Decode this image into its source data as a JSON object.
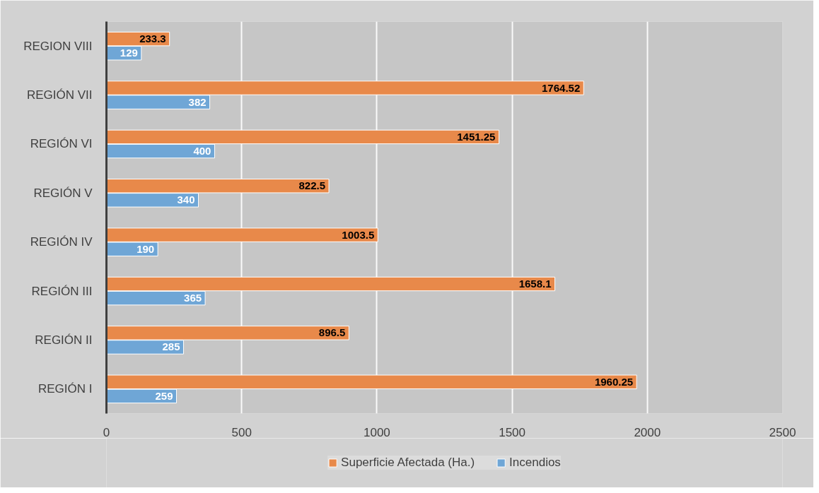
{
  "chart_data": {
    "type": "bar",
    "orientation": "horizontal",
    "categories": [
      "REGION VIII",
      "REGIÓN VII",
      "REGIÓN VI",
      "REGIÓN V",
      "REGIÓN IV",
      "REGIÓN III",
      "REGIÓN II",
      "REGIÓN I"
    ],
    "series": [
      {
        "name": "Superficie Afectada (Ha.)",
        "color": "#e8894a",
        "values": [
          233.3,
          1764.52,
          1451.25,
          822.5,
          1003.5,
          1658.1,
          896.5,
          1960.25
        ]
      },
      {
        "name": "Incendios",
        "color": "#6fa6d6",
        "values": [
          129,
          382,
          400,
          340,
          190,
          365,
          285,
          259
        ]
      }
    ],
    "xlim": [
      0,
      2500
    ],
    "xticks": [
      0,
      500,
      1000,
      1500,
      2000,
      2500
    ],
    "grid": "x",
    "legend": "bottom",
    "data_labels": true
  }
}
